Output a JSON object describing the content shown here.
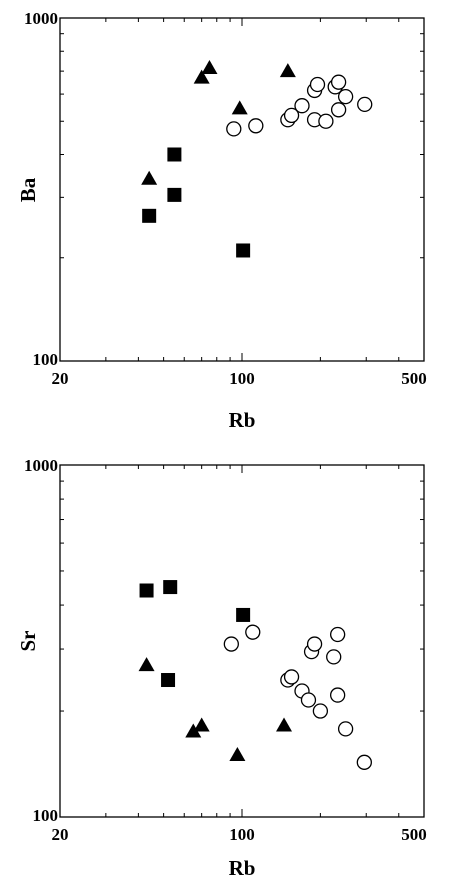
{
  "chart_data": [
    {
      "type": "scatter",
      "title": "",
      "xlabel": "Rb",
      "ylabel": "Ba",
      "xscale": "log",
      "yscale": "log",
      "xlim": [
        20,
        500
      ],
      "ylim": [
        100,
        1000
      ],
      "xticks": [
        {
          "value": 20,
          "label": "20"
        },
        {
          "value": 100,
          "label": "100"
        },
        {
          "value": 500,
          "label": "500"
        }
      ],
      "yticks": [
        {
          "value": 100,
          "label": "100"
        },
        {
          "value": 1000,
          "label": "1000"
        }
      ],
      "grid": false,
      "series": [
        {
          "marker": "square-filled",
          "points": [
            [
              44,
              265
            ],
            [
              55,
              400
            ],
            [
              55,
              305
            ],
            [
              101,
              210
            ]
          ]
        },
        {
          "marker": "triangle-filled",
          "points": [
            [
              44,
              340
            ],
            [
              70,
              670
            ],
            [
              75,
              715
            ],
            [
              98,
              545
            ],
            [
              150,
              700
            ]
          ]
        },
        {
          "marker": "circle-open",
          "points": [
            [
              93,
              475
            ],
            [
              113,
              485
            ],
            [
              150,
              505
            ],
            [
              155,
              520
            ],
            [
              170,
              555
            ],
            [
              190,
              615
            ],
            [
              195,
              640
            ],
            [
              190,
              505
            ],
            [
              210,
              500
            ],
            [
              228,
              630
            ],
            [
              235,
              650
            ],
            [
              235,
              540
            ],
            [
              250,
              590
            ],
            [
              296,
              560
            ]
          ]
        }
      ]
    },
    {
      "type": "scatter",
      "title": "",
      "xlabel": "Rb",
      "ylabel": "Sr",
      "xscale": "log",
      "yscale": "log",
      "xlim": [
        20,
        500
      ],
      "ylim": [
        100,
        1000
      ],
      "xticks": [
        {
          "value": 20,
          "label": "20"
        },
        {
          "value": 100,
          "label": "100"
        },
        {
          "value": 500,
          "label": "500"
        }
      ],
      "yticks": [
        {
          "value": 100,
          "label": "100"
        },
        {
          "value": 1000,
          "label": "1000"
        }
      ],
      "grid": false,
      "series": [
        {
          "marker": "square-filled",
          "points": [
            [
              43,
              440
            ],
            [
              53,
              450
            ],
            [
              52,
              245
            ],
            [
              101,
              375
            ]
          ]
        },
        {
          "marker": "triangle-filled",
          "points": [
            [
              43,
              270
            ],
            [
              65,
              175
            ],
            [
              70,
              182
            ],
            [
              96,
              150
            ],
            [
              145,
              182
            ]
          ]
        },
        {
          "marker": "circle-open",
          "points": [
            [
              91,
              310
            ],
            [
              110,
              335
            ],
            [
              150,
              245
            ],
            [
              155,
              250
            ],
            [
              170,
              228
            ],
            [
              180,
              215
            ],
            [
              185,
              295
            ],
            [
              190,
              310
            ],
            [
              200,
              200
            ],
            [
              225,
              285
            ],
            [
              233,
              330
            ],
            [
              233,
              222
            ],
            [
              250,
              178
            ],
            [
              295,
              143
            ]
          ]
        }
      ]
    }
  ]
}
